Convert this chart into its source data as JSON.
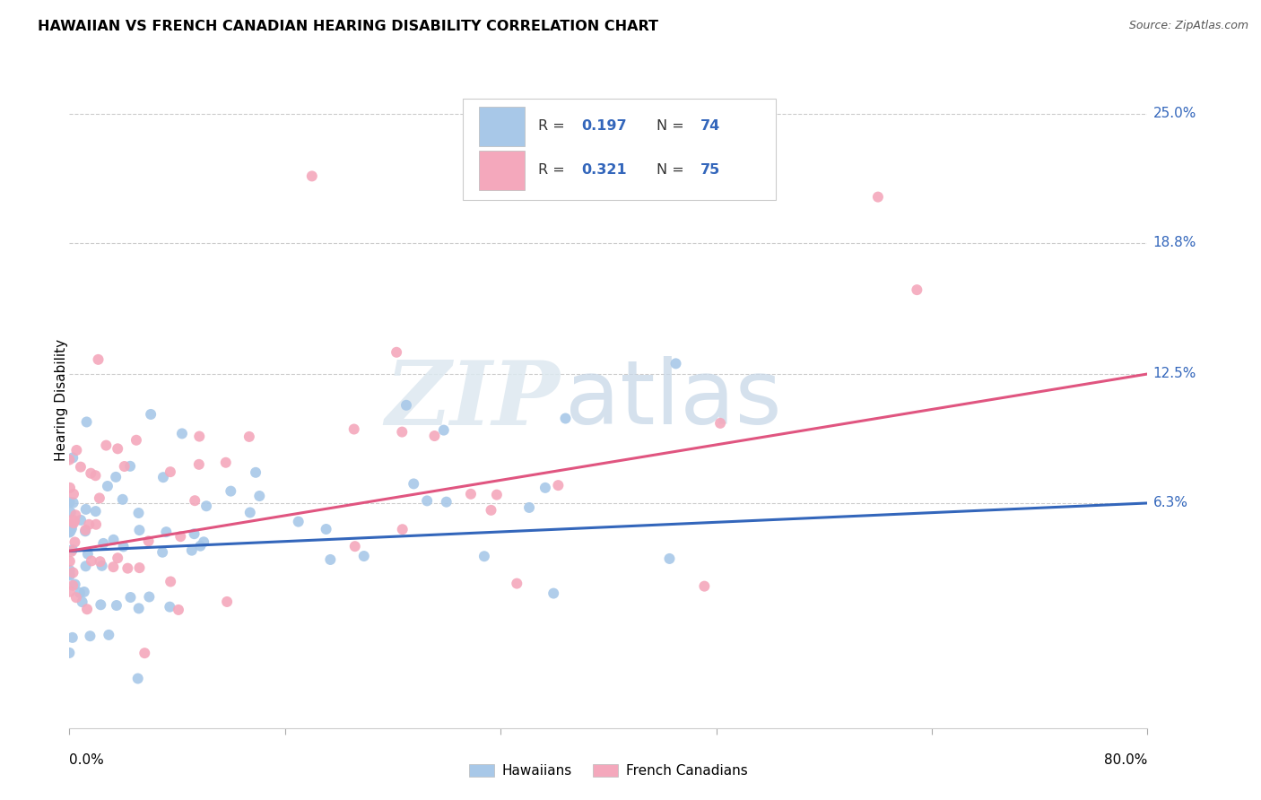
{
  "title": "HAWAIIAN VS FRENCH CANADIAN HEARING DISABILITY CORRELATION CHART",
  "source": "Source: ZipAtlas.com",
  "ylabel": "Hearing Disability",
  "ytick_labels": [
    "25.0%",
    "18.8%",
    "12.5%",
    "6.3%"
  ],
  "ytick_values": [
    0.25,
    0.188,
    0.125,
    0.063
  ],
  "xlim": [
    0.0,
    0.8
  ],
  "ylim": [
    -0.045,
    0.27
  ],
  "hawaiian_color": "#a8c8e8",
  "french_color": "#f4a8bc",
  "hawaiian_line_color": "#3366bb",
  "french_line_color": "#e05580",
  "legend_r_hawaiian_prefix": "R = ",
  "legend_r_hawaiian_val": "0.197",
  "legend_n_hawaiian_prefix": "N = ",
  "legend_n_hawaiian_val": "74",
  "legend_r_french_prefix": "R = ",
  "legend_r_french_val": "0.321",
  "legend_n_french_prefix": "N = ",
  "legend_n_french_val": "75",
  "r_val_color": "#3366bb",
  "n_val_color": "#3366bb",
  "watermark_zip": "ZIP",
  "watermark_atlas": "atlas",
  "background_color": "#ffffff",
  "grid_color": "#cccccc",
  "ytick_color": "#3366bb",
  "title_color": "#000000",
  "source_color": "#555555"
}
